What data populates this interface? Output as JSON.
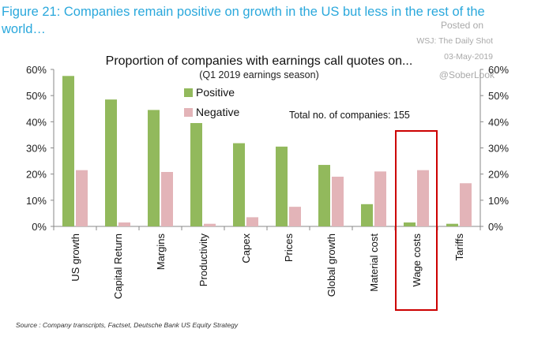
{
  "figure_title": "Figure 21: Companies remain positive on growth in the US but less in the rest of the world…",
  "watermark": {
    "posted_on": "Posted on",
    "outlet": "WSJ: The Daily Shot",
    "date": "03-May-2019",
    "handle": "@SoberLook"
  },
  "source": "Source : Company transcripts, Factset, Deutsche Bank US Equity Strategy",
  "chart_data": {
    "type": "bar",
    "title": "Proportion of companies with earnings call quotes on...",
    "subtitle": "(Q1 2019 earnings season)",
    "annotation": "Total no. of companies: 155",
    "categories": [
      "US growth",
      "Capital Return",
      "Margins",
      "Productivity",
      "Capex",
      "Prices",
      "Global growth",
      "Material cost",
      "Wage costs",
      "Tariffs"
    ],
    "series": [
      {
        "name": "Positive",
        "color": "#92b95c",
        "values": [
          57.5,
          48.5,
          44.5,
          39.5,
          31.8,
          30.5,
          23.5,
          8.5,
          1.5,
          1.0
        ]
      },
      {
        "name": "Negative",
        "color": "#e3b4b8",
        "values": [
          21.5,
          1.5,
          20.8,
          1.0,
          3.5,
          7.5,
          19.0,
          21.0,
          21.5,
          16.5
        ]
      }
    ],
    "ylim": [
      0,
      60
    ],
    "yticks": [
      "0%",
      "10%",
      "20%",
      "30%",
      "40%",
      "50%",
      "60%"
    ],
    "secondary_yticks": [
      "0%",
      "10%",
      "20%",
      "30%",
      "40%",
      "50%",
      "60%"
    ],
    "legend_position": "top-left",
    "highlighted_category": "Wage costs",
    "highlight_color": "#cc0000",
    "grid": false
  }
}
